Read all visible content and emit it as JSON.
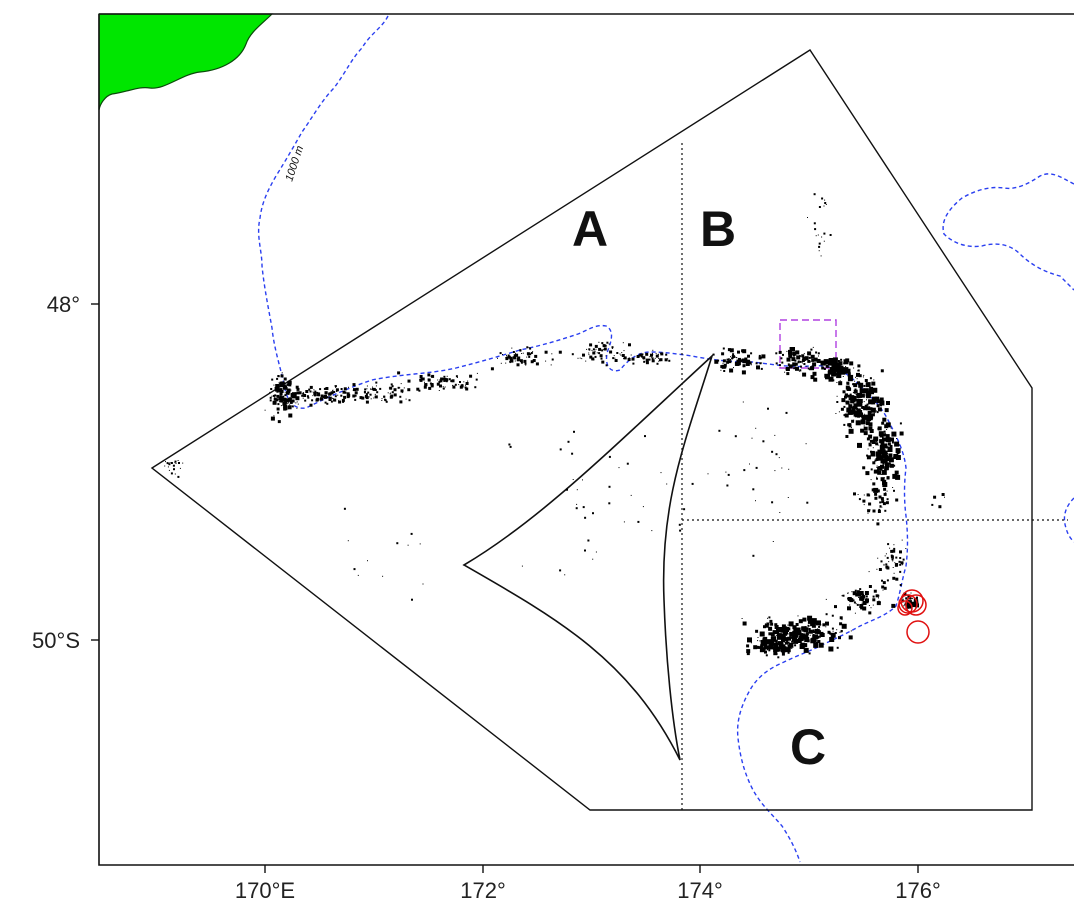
{
  "map": {
    "land_color": "#00e600",
    "contour_color": "#2a3ff0",
    "box_color": "#b040e0",
    "marker_color": "#e01010",
    "point_color": "#000000"
  },
  "axes": {
    "x_ticks": [
      "170°E",
      "172°",
      "174°",
      "176°"
    ],
    "y_ticks": [
      "48°",
      "50°S"
    ]
  },
  "areas": [
    "A",
    "B",
    "C"
  ],
  "contour_label": "1000 m"
}
